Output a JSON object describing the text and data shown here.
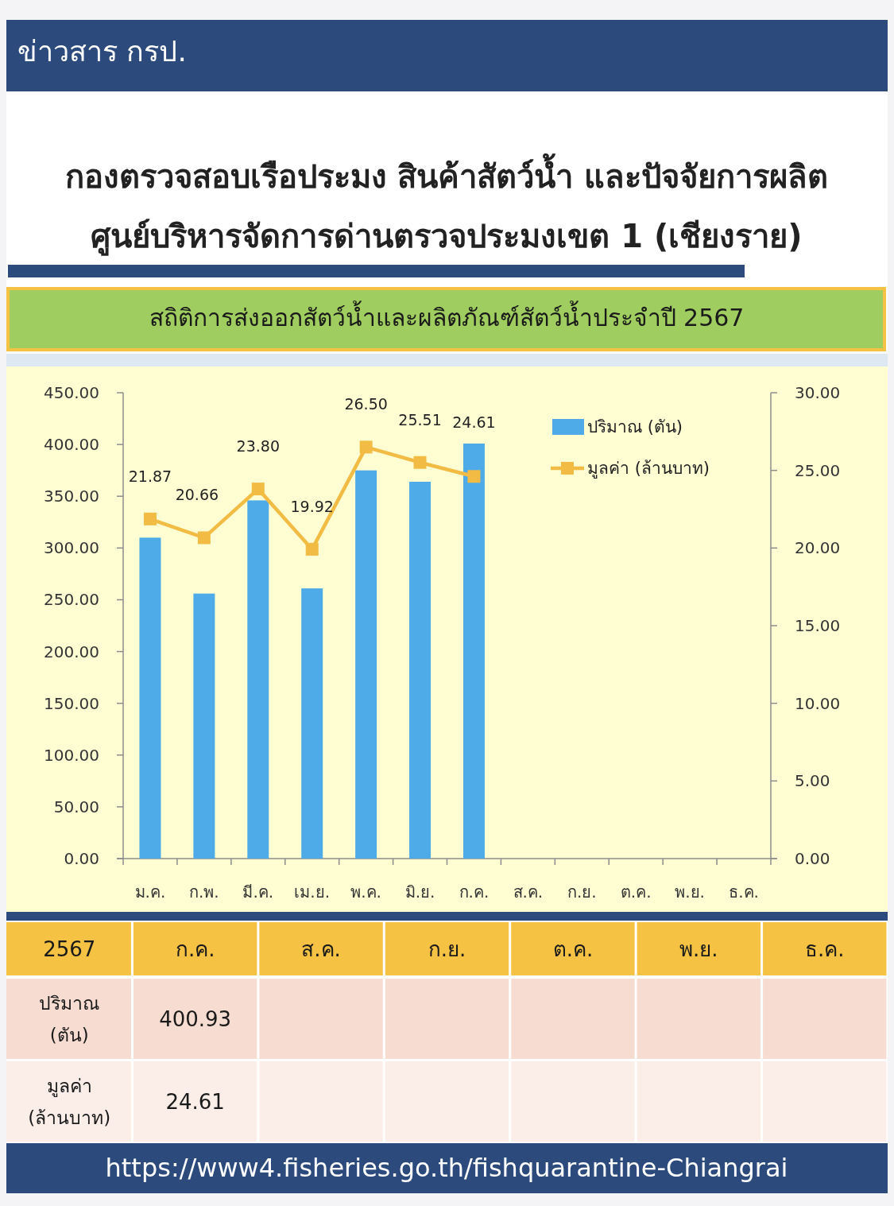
{
  "chart_data": [
    {
      "type": "bar",
      "title": "สถิติการส่งออกสัตว์น้ำและผลิตภัณฑ์สัตว์น้ำประจำปี 2567",
      "annotations": [
        "ข่าวสาร กรป.",
        "กองตรวจสอบเรือประมง สินค้าสัตว์น้ำ และปัจจัยการผลิต",
        "ศูนย์บริหารจัดการด่านตรวจประมงเขต 1 (เชียงราย)"
      ],
      "categories": [
        "ม.ค.",
        "ก.พ.",
        "มี.ค.",
        "เม.ย.",
        "พ.ค.",
        "มิ.ย.",
        "ก.ค.",
        "ส.ค.",
        "ก.ย.",
        "ต.ค.",
        "พ.ย.",
        "ธ.ค."
      ],
      "series": [
        {
          "name": "ปริมาณ (ตัน)",
          "type": "bar",
          "color": "#4eabe8",
          "values": [
            310,
            256,
            346,
            261,
            375,
            364,
            400.93,
            null,
            null,
            null,
            null,
            null
          ]
        },
        {
          "name": "มูลค่า (ล้านบาท)",
          "type": "line",
          "axis": "y2",
          "color": "#f2bc44",
          "values": [
            21.87,
            20.66,
            23.8,
            19.92,
            26.5,
            25.51,
            24.61,
            null,
            null,
            null,
            null,
            null
          ],
          "value_labels": [
            "21.87",
            "20.66",
            "23.80",
            "19.92",
            "26.50",
            "25.51",
            "24.61",
            null,
            null,
            null,
            null,
            null
          ]
        }
      ],
      "ylim": [
        0,
        450
      ],
      "yticks": [
        {
          "value": 0,
          "label": "0.00"
        },
        {
          "value": 50,
          "label": "50.00"
        },
        {
          "value": 100,
          "label": "100.00"
        },
        {
          "value": 150,
          "label": "150.00"
        },
        {
          "value": 200,
          "label": "200.00"
        },
        {
          "value": 250,
          "label": "250.00"
        },
        {
          "value": 300,
          "label": "300.00"
        },
        {
          "value": 350,
          "label": "350.00"
        },
        {
          "value": 400,
          "label": "400.00"
        },
        {
          "value": 450,
          "label": "450.00"
        }
      ],
      "y2lim": [
        0,
        30
      ],
      "y2ticks": [
        {
          "value": 0,
          "label": "0.00"
        },
        {
          "value": 5,
          "label": "5.00"
        },
        {
          "value": 10,
          "label": "10.00"
        },
        {
          "value": 15,
          "label": "15.00"
        },
        {
          "value": 20,
          "label": "20.00"
        },
        {
          "value": 25,
          "label": "25.00"
        },
        {
          "value": 30,
          "label": "30.00"
        }
      ],
      "legend": "top right",
      "marker": "square",
      "line_style": "solid"
    },
    {
      "type": "other",
      "title": "2567",
      "categories": [
        "ก.ค.",
        "ส.ค.",
        "ก.ย.",
        "ต.ค.",
        "พ.ย.",
        "ธ.ค."
      ],
      "series": [
        {
          "name": "ปริมาณ (ตัน)",
          "values": [
            400.93,
            null,
            null,
            null,
            null,
            null
          ],
          "value_labels": [
            "400.93",
            null,
            null,
            null,
            null,
            null
          ]
        },
        {
          "name": "มูลค่า (ล้านบาท)",
          "values": [
            24.61,
            null,
            null,
            null,
            null,
            null
          ],
          "value_labels": [
            "24.61",
            null,
            null,
            null,
            null,
            null
          ]
        }
      ],
      "annotations": [
        "https://www4.fisheries.go.th/fishquarantine-Chiangrai"
      ]
    }
  ]
}
